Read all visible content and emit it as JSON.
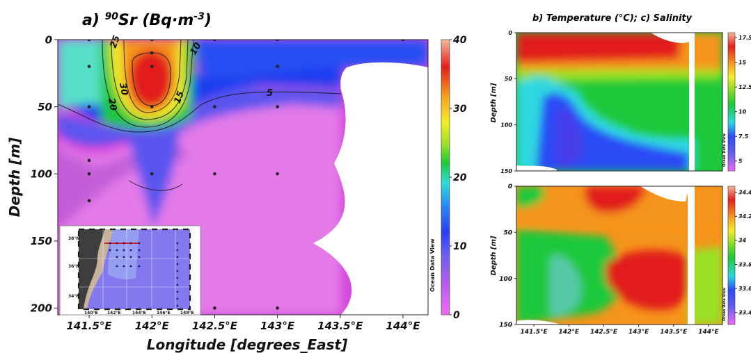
{
  "chart_data": [
    {
      "type": "heatmap",
      "title": "a) ⁹⁰Sr (Bq·m⁻³)",
      "xlabel": "Longitude [degrees_East]",
      "ylabel": "Depth [m]",
      "x_ticks": [
        "141.5°E",
        "142°E",
        "142.5°E",
        "143°E",
        "143.5°E",
        "144°E"
      ],
      "x_tick_values": [
        141.5,
        142,
        142.5,
        143,
        143.5,
        144
      ],
      "y_ticks": [
        "0",
        "50",
        "100",
        "150",
        "200"
      ],
      "y_tick_values": [
        0,
        50,
        100,
        150,
        200
      ],
      "xlim": [
        141.25,
        144.2
      ],
      "ylim": [
        0,
        205
      ],
      "colorbar": {
        "ticks": [
          "0",
          "10",
          "20",
          "30",
          "40"
        ],
        "tick_values": [
          0,
          10,
          20,
          30,
          40
        ],
        "range": [
          0,
          40
        ]
      },
      "contour_labels": [
        "25",
        "30",
        "20",
        "10",
        "15",
        "5"
      ],
      "watermark": "Ocean Data View",
      "stations": [
        [
          141.5,
          0
        ],
        [
          141.5,
          20
        ],
        [
          141.5,
          50
        ],
        [
          141.5,
          90
        ],
        [
          141.5,
          100
        ],
        [
          141.5,
          120
        ],
        [
          142.0,
          0
        ],
        [
          142.0,
          10
        ],
        [
          142.0,
          20
        ],
        [
          142.0,
          50
        ],
        [
          142.0,
          100
        ],
        [
          142.5,
          0
        ],
        [
          142.5,
          50
        ],
        [
          142.5,
          100
        ],
        [
          142.5,
          200
        ],
        [
          143.0,
          0
        ],
        [
          143.0,
          20
        ],
        [
          143.0,
          50
        ],
        [
          143.0,
          100
        ],
        [
          143.0,
          200
        ],
        [
          144.0,
          0
        ]
      ],
      "inset_map": {
        "lat_labels": [
          "38°N",
          "36°N",
          "34°N"
        ],
        "lon_labels": [
          "140°E",
          "142°E",
          "144°E",
          "146°E",
          "148°E"
        ]
      }
    },
    {
      "type": "heatmap",
      "title": "b) Temperature (°C); c) Salinity",
      "ylabel": "Depth [m]",
      "y_ticks": [
        "0",
        "50",
        "100",
        "150"
      ],
      "y_tick_values": [
        0,
        50,
        100,
        150
      ],
      "xlim": [
        141.25,
        144.2
      ],
      "ylim": [
        0,
        150
      ],
      "colorbar": {
        "ticks": [
          "5",
          "7.5",
          "10",
          "12.5",
          "15",
          "17.5"
        ],
        "tick_values": [
          5,
          7.5,
          10,
          12.5,
          15,
          17.5
        ],
        "range": [
          4,
          18
        ]
      },
      "watermark": "Ocean Data View"
    },
    {
      "type": "heatmap",
      "xlabel": "",
      "ylabel": "Depth [m]",
      "x_ticks": [
        "141.5°E",
        "142°E",
        "142.5°E",
        "143°E",
        "143.5°E",
        "144°E"
      ],
      "x_tick_values": [
        141.5,
        142,
        142.5,
        143,
        143.5,
        144
      ],
      "y_ticks": [
        "0",
        "50",
        "100",
        "150"
      ],
      "y_tick_values": [
        0,
        50,
        100,
        150
      ],
      "xlim": [
        141.25,
        144.2
      ],
      "ylim": [
        0,
        150
      ],
      "colorbar": {
        "ticks": [
          "33.4",
          "33.6",
          "33.8",
          "34",
          "34.2",
          "34.4"
        ],
        "tick_values": [
          33.4,
          33.6,
          33.8,
          34,
          34.2,
          34.4
        ],
        "range": [
          33.3,
          34.45
        ]
      },
      "watermark": "Ocean Data View"
    }
  ]
}
